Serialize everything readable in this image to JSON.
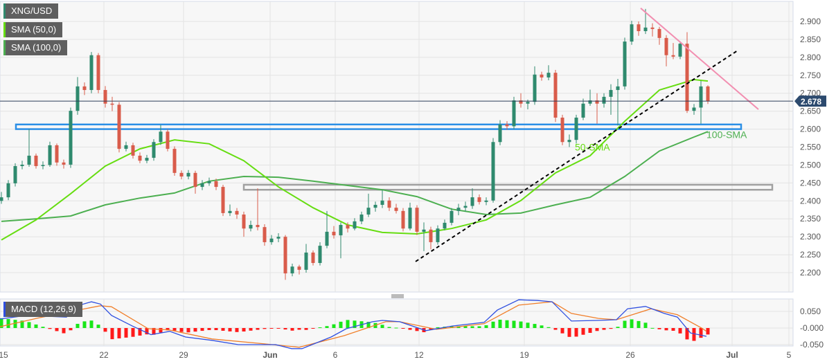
{
  "chart_data": {
    "type": "candlestick",
    "symbol": "XNG/USD",
    "legend": [
      {
        "label": "XNG/USD",
        "color": "#2f8a6e"
      },
      {
        "label": "SMA (50,0)",
        "color": "#66dd11"
      },
      {
        "label": "SMA (100,0)",
        "color": "#4caf50"
      }
    ],
    "colors": {
      "up": "#2f8a6e",
      "down": "#d95c4b",
      "sma50": "#66dd11",
      "sma100": "#4caf50",
      "support_zone": "#2b8fe6",
      "resistance_zone": "#a0a0a0",
      "trendline": "#000000",
      "falling_trendline": "#f28fb1",
      "macd": "#2f4fe0",
      "signal": "#f07f2a",
      "hist_up": "#19e619",
      "hist_down": "#ff1a1a",
      "price_label_bg": "#2c4a6e"
    },
    "y_axis": {
      "ticks": [
        "2.200",
        "2.250",
        "2.300",
        "2.350",
        "2.400",
        "2.450",
        "2.500",
        "2.550",
        "2.600",
        "2.650",
        "2.700",
        "2.750",
        "2.800",
        "2.850",
        "2.900"
      ],
      "range": [
        2.165,
        2.955
      ]
    },
    "x_axis": {
      "ticks": [
        {
          "label": "15",
          "bar": 0.3
        },
        {
          "label": "22",
          "bar": 14.8
        },
        {
          "label": "29",
          "bar": 26.3
        },
        {
          "label": "Jun",
          "bar": 38.8,
          "bold": true
        },
        {
          "label": "6",
          "bar": 48.2
        },
        {
          "label": "12",
          "bar": 60.3
        },
        {
          "label": "19",
          "bar": 75.5
        },
        {
          "label": "26",
          "bar": 90.8
        },
        {
          "label": "Jul",
          "bar": 105.5,
          "bold": true
        },
        {
          "label": "5",
          "bar": 113.7
        }
      ]
    },
    "current_price": "2.678",
    "ohlc": [
      [
        2.4,
        2.425,
        2.392,
        2.41
      ],
      [
        2.41,
        2.458,
        2.402,
        2.449
      ],
      [
        2.449,
        2.505,
        2.44,
        2.497
      ],
      [
        2.497,
        2.512,
        2.488,
        2.501
      ],
      [
        2.501,
        2.6,
        2.495,
        2.526
      ],
      [
        2.526,
        2.532,
        2.49,
        2.497
      ],
      [
        2.497,
        2.51,
        2.488,
        2.5
      ],
      [
        2.5,
        2.565,
        2.495,
        2.555
      ],
      [
        2.555,
        2.56,
        2.498,
        2.507
      ],
      [
        2.507,
        2.515,
        2.49,
        2.501
      ],
      [
        2.501,
        2.66,
        2.492,
        2.651
      ],
      [
        2.651,
        2.745,
        2.64,
        2.719
      ],
      [
        2.719,
        2.73,
        2.695,
        2.709
      ],
      [
        2.709,
        2.815,
        2.7,
        2.806
      ],
      [
        2.806,
        2.812,
        2.7,
        2.709
      ],
      [
        2.709,
        2.72,
        2.66,
        2.671
      ],
      [
        2.671,
        2.69,
        2.65,
        2.668
      ],
      [
        2.668,
        2.675,
        2.535,
        2.545
      ],
      [
        2.545,
        2.565,
        2.538,
        2.555
      ],
      [
        2.555,
        2.562,
        2.518,
        2.526
      ],
      [
        2.526,
        2.535,
        2.505,
        2.512
      ],
      [
        2.512,
        2.528,
        2.505,
        2.52
      ],
      [
        2.52,
        2.572,
        2.512,
        2.564
      ],
      [
        2.564,
        2.612,
        2.556,
        2.593
      ],
      [
        2.593,
        2.6,
        2.538,
        2.545
      ],
      [
        2.545,
        2.552,
        2.47,
        2.478
      ],
      [
        2.478,
        2.485,
        2.46,
        2.468
      ],
      [
        2.468,
        2.486,
        2.46,
        2.478
      ],
      [
        2.478,
        2.484,
        2.42,
        2.439
      ],
      [
        2.439,
        2.458,
        2.43,
        2.449
      ],
      [
        2.449,
        2.465,
        2.442,
        2.455
      ],
      [
        2.455,
        2.462,
        2.43,
        2.439
      ],
      [
        2.439,
        2.445,
        2.358,
        2.366
      ],
      [
        2.366,
        2.39,
        2.358,
        2.372
      ],
      [
        2.372,
        2.38,
        2.35,
        2.362
      ],
      [
        2.362,
        2.37,
        2.3,
        2.323
      ],
      [
        2.323,
        2.345,
        2.315,
        2.333
      ],
      [
        2.333,
        2.435,
        2.318,
        2.327
      ],
      [
        2.327,
        2.335,
        2.275,
        2.285
      ],
      [
        2.285,
        2.305,
        2.278,
        2.295
      ],
      [
        2.295,
        2.31,
        2.285,
        2.3
      ],
      [
        2.3,
        2.305,
        2.18,
        2.198
      ],
      [
        2.198,
        2.225,
        2.19,
        2.217
      ],
      [
        2.217,
        2.222,
        2.195,
        2.208
      ],
      [
        2.208,
        2.28,
        2.2,
        2.256
      ],
      [
        2.256,
        2.262,
        2.22,
        2.227
      ],
      [
        2.227,
        2.285,
        2.22,
        2.275
      ],
      [
        2.275,
        2.372,
        2.268,
        2.314
      ],
      [
        2.314,
        2.33,
        2.295,
        2.304
      ],
      [
        2.304,
        2.34,
        2.24,
        2.333
      ],
      [
        2.333,
        2.34,
        2.312,
        2.323
      ],
      [
        2.323,
        2.352,
        2.318,
        2.343
      ],
      [
        2.343,
        2.37,
        2.335,
        2.362
      ],
      [
        2.362,
        2.42,
        2.355,
        2.381
      ],
      [
        2.381,
        2.398,
        2.37,
        2.389
      ],
      [
        2.389,
        2.43,
        2.38,
        2.401
      ],
      [
        2.401,
        2.41,
        2.372,
        2.381
      ],
      [
        2.381,
        2.392,
        2.365,
        2.372
      ],
      [
        2.372,
        2.38,
        2.315,
        2.323
      ],
      [
        2.323,
        2.395,
        2.318,
        2.381
      ],
      [
        2.381,
        2.388,
        2.305,
        2.314
      ],
      [
        2.314,
        2.34,
        2.26,
        2.32
      ],
      [
        2.32,
        2.328,
        2.265,
        2.285
      ],
      [
        2.285,
        2.332,
        2.278,
        2.323
      ],
      [
        2.323,
        2.348,
        2.318,
        2.339
      ],
      [
        2.339,
        2.38,
        2.332,
        2.372
      ],
      [
        2.372,
        2.392,
        2.36,
        2.381
      ],
      [
        2.381,
        2.398,
        2.37,
        2.386
      ],
      [
        2.386,
        2.435,
        2.378,
        2.41
      ],
      [
        2.41,
        2.418,
        2.39,
        2.397
      ],
      [
        2.397,
        2.41,
        2.388,
        2.401
      ],
      [
        2.401,
        2.575,
        2.395,
        2.564
      ],
      [
        2.564,
        2.625,
        2.555,
        2.613
      ],
      [
        2.613,
        2.622,
        2.598,
        2.608
      ],
      [
        2.608,
        2.69,
        2.6,
        2.68
      ],
      [
        2.68,
        2.7,
        2.66,
        2.671
      ],
      [
        2.671,
        2.682,
        2.655,
        2.676
      ],
      [
        2.676,
        2.775,
        2.668,
        2.752
      ],
      [
        2.752,
        2.76,
        2.735,
        2.744
      ],
      [
        2.744,
        2.778,
        2.736,
        2.757
      ],
      [
        2.757,
        2.765,
        2.62,
        2.632
      ],
      [
        2.632,
        2.64,
        2.555,
        2.564
      ],
      [
        2.564,
        2.585,
        2.55,
        2.57
      ],
      [
        2.57,
        2.64,
        2.56,
        2.632
      ],
      [
        2.632,
        2.685,
        2.625,
        2.671
      ],
      [
        2.671,
        2.71,
        2.665,
        2.68
      ],
      [
        2.68,
        2.7,
        2.615,
        2.671
      ],
      [
        2.671,
        2.7,
        2.66,
        2.69
      ],
      [
        2.69,
        2.725,
        2.64,
        2.709
      ],
      [
        2.709,
        2.74,
        2.61,
        2.719
      ],
      [
        2.719,
        2.855,
        2.71,
        2.844
      ],
      [
        2.844,
        2.902,
        2.835,
        2.892
      ],
      [
        2.892,
        2.9,
        2.86,
        2.873
      ],
      [
        2.873,
        2.935,
        2.865,
        2.883
      ],
      [
        2.883,
        2.895,
        2.858,
        2.879
      ],
      [
        2.879,
        2.885,
        2.835,
        2.854
      ],
      [
        2.854,
        2.862,
        2.775,
        2.806
      ],
      [
        2.806,
        2.84,
        2.795,
        2.802
      ],
      [
        2.802,
        2.845,
        2.795,
        2.838
      ],
      [
        2.838,
        2.87,
        2.645,
        2.651
      ],
      [
        2.651,
        2.67,
        2.64,
        2.66
      ],
      [
        2.66,
        2.735,
        2.615,
        2.719
      ],
      [
        2.719,
        2.722,
        2.67,
        2.678
      ]
    ],
    "sma50": [
      [
        0,
        2.291
      ],
      [
        5,
        2.347
      ],
      [
        10,
        2.42
      ],
      [
        15,
        2.497
      ],
      [
        20,
        2.545
      ],
      [
        25,
        2.57
      ],
      [
        30,
        2.559
      ],
      [
        35,
        2.512
      ],
      [
        40,
        2.439
      ],
      [
        45,
        2.381
      ],
      [
        50,
        2.333
      ],
      [
        55,
        2.312
      ],
      [
        60,
        2.308
      ],
      [
        65,
        2.323
      ],
      [
        70,
        2.347
      ],
      [
        75,
        2.401
      ],
      [
        80,
        2.478
      ],
      [
        85,
        2.526
      ],
      [
        90,
        2.622
      ],
      [
        95,
        2.709
      ],
      [
        100,
        2.738
      ],
      [
        102,
        2.734
      ]
    ],
    "sma100": [
      [
        0,
        2.343
      ],
      [
        5,
        2.35
      ],
      [
        10,
        2.358
      ],
      [
        15,
        2.389
      ],
      [
        20,
        2.408
      ],
      [
        25,
        2.422
      ],
      [
        30,
        2.455
      ],
      [
        35,
        2.468
      ],
      [
        40,
        2.466
      ],
      [
        45,
        2.455
      ],
      [
        50,
        2.443
      ],
      [
        55,
        2.431
      ],
      [
        60,
        2.412
      ],
      [
        65,
        2.377
      ],
      [
        70,
        2.362
      ],
      [
        75,
        2.366
      ],
      [
        80,
        2.389
      ],
      [
        85,
        2.41
      ],
      [
        90,
        2.468
      ],
      [
        95,
        2.539
      ],
      [
        100,
        2.578
      ],
      [
        102,
        2.593
      ]
    ],
    "annotations": {
      "support_zone": {
        "from_bar": 2.1,
        "to_bar": 106.8,
        "low": 2.6,
        "high": 2.613
      },
      "resistance_zone": {
        "from_bar": 35,
        "to_bar": 111.3,
        "low": 2.431,
        "high": 2.445
      },
      "rising_trendline": {
        "start": [
          59.8,
          2.231
        ],
        "end": [
          106.3,
          2.819
        ]
      },
      "falling_trendline": {
        "start": [
          92.3,
          2.937
        ],
        "end": [
          109.3,
          2.655
        ]
      },
      "labels": [
        {
          "text": "50-SMA",
          "bar": 82.8,
          "price": 2.54,
          "color": "#66dd11"
        },
        {
          "text": "100-SMA",
          "bar": 101.8,
          "price": 2.575,
          "color": "#4caf50"
        }
      ]
    },
    "macd": {
      "label": "MACD (12,26,9)",
      "y_ticks": [
        "0.050",
        "-0.000",
        "-0.050"
      ],
      "macd_line": [
        [
          -0.2,
          0.027
        ],
        [
          3.6,
          0.038
        ],
        [
          9.4,
          0.033
        ],
        [
          11.3,
          0.069
        ],
        [
          13,
          0.079
        ],
        [
          14.3,
          0.072
        ],
        [
          15.9,
          0.038
        ],
        [
          18.9,
          0.006
        ],
        [
          21.6,
          -0.02
        ],
        [
          24.3,
          -0.01
        ],
        [
          26.6,
          -0.027
        ],
        [
          30.4,
          -0.037
        ],
        [
          34.2,
          -0.05
        ],
        [
          39.6,
          -0.05
        ],
        [
          41.9,
          -0.062
        ],
        [
          43.4,
          -0.062
        ],
        [
          47.6,
          -0.027
        ],
        [
          49.8,
          -0.002
        ],
        [
          53.6,
          0.019
        ],
        [
          55,
          0.023
        ],
        [
          57.5,
          0.019
        ],
        [
          61.3,
          -0.008
        ],
        [
          65.1,
          0.006
        ],
        [
          69.7,
          0.017
        ],
        [
          71.6,
          0.054
        ],
        [
          74.7,
          0.085
        ],
        [
          77.4,
          0.083
        ],
        [
          79.5,
          0.079
        ],
        [
          82.3,
          0.021
        ],
        [
          86.2,
          0.023
        ],
        [
          88.8,
          0.025
        ],
        [
          90.4,
          0.058
        ],
        [
          93,
          0.065
        ],
        [
          95.7,
          0.044
        ],
        [
          97.6,
          0.033
        ],
        [
          99.5,
          -0.015
        ],
        [
          101.8,
          -0.025
        ]
      ],
      "signal_line": [
        [
          -0.2,
          0.004
        ],
        [
          5.5,
          0.031
        ],
        [
          10.1,
          0.05
        ],
        [
          14.3,
          0.067
        ],
        [
          15.9,
          0.064
        ],
        [
          21.2,
          -0.002
        ],
        [
          24.3,
          -0.006
        ],
        [
          30.4,
          -0.033
        ],
        [
          38.1,
          -0.048
        ],
        [
          43,
          -0.058
        ],
        [
          49.5,
          -0.023
        ],
        [
          55.5,
          0.019
        ],
        [
          57.5,
          0.019
        ],
        [
          62.8,
          -0.004
        ],
        [
          69.7,
          0.013
        ],
        [
          74.7,
          0.069
        ],
        [
          79.5,
          0.079
        ],
        [
          82.3,
          0.044
        ],
        [
          86.2,
          0.029
        ],
        [
          88.8,
          0.025
        ],
        [
          93.8,
          0.058
        ],
        [
          97.6,
          0.04
        ],
        [
          101.1,
          0.0
        ],
        [
          101.8,
          -0.01
        ]
      ]
    }
  }
}
